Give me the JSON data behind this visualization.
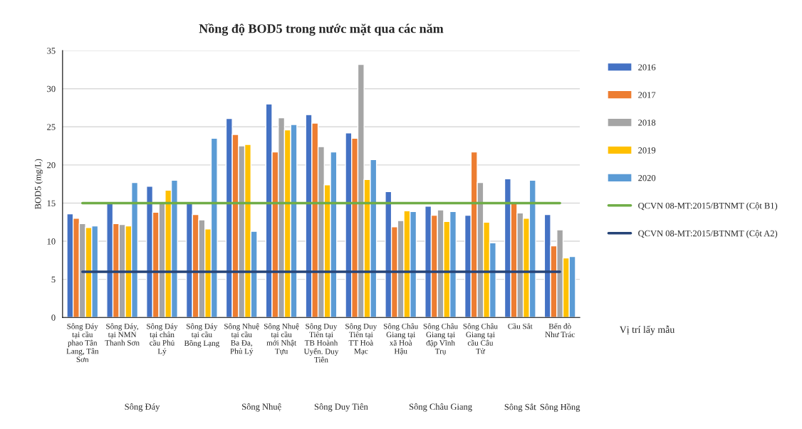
{
  "chart_data": {
    "type": "bar",
    "title": "Nồng độ BOD5 trong nước mặt qua các năm",
    "ylabel": "BOD5 (mg/L)",
    "xlabel": "Vị trí lấy mẫu",
    "categories": [
      "Sông Đáy tại cầu phao Tân Lang, Tân Sơn",
      "Sông Đáy, tại NMN Thanh Sơn",
      "Sông Đáy tại chân cầu Phủ Lý",
      "Sông Đáy tại cầu Bồng Lạng",
      "Sông Nhuệ tại cầu Ba Đa,  Phủ Lý",
      "Sông Nhuệ tại cầu mới Nhật Tựu",
      "Sông Duy Tiên tại TB Hoành Uyển. Duy Tiên",
      "Sông Duy Tiên tại TT Hoà Mạc",
      "Sông Châu Giang tại xã Hoà Hậu",
      "Sông Châu Giang tại đập Vĩnh Trụ",
      "Sông Châu Giang tại cầu Câu Tử",
      "Cầu Sắt",
      "Bến đò Như Trác"
    ],
    "series": [
      {
        "name": "2016",
        "color": "#4472c4",
        "values": [
          13.6,
          15.0,
          17.2,
          15.0,
          26.1,
          28.0,
          26.6,
          24.2,
          16.5,
          14.6,
          13.4,
          18.2,
          13.5
        ]
      },
      {
        "name": "2017",
        "color": "#ed7d31",
        "values": [
          13.0,
          12.3,
          13.8,
          13.5,
          24.0,
          21.7,
          25.5,
          23.5,
          11.9,
          13.4,
          21.7,
          15.0,
          9.4
        ]
      },
      {
        "name": "2018",
        "color": "#a5a5a5",
        "values": [
          12.3,
          12.2,
          15.0,
          12.8,
          22.5,
          26.2,
          22.4,
          33.2,
          12.7,
          14.1,
          17.7,
          13.7,
          11.5
        ]
      },
      {
        "name": "2019",
        "color": "#ffc000",
        "values": [
          11.8,
          12.0,
          16.7,
          11.6,
          22.7,
          24.6,
          17.4,
          18.1,
          14.0,
          12.6,
          12.5,
          13.0,
          7.8
        ]
      },
      {
        "name": "2020",
        "color": "#5b9bd5",
        "values": [
          12.0,
          17.7,
          18.0,
          23.5,
          11.3,
          25.3,
          21.7,
          20.7,
          13.9,
          13.9,
          9.8,
          18.0,
          8.0
        ]
      },
      {
        "name": "QCVN 08-MT:2015/BTNMT (Cột B1)",
        "type": "line",
        "color": "#70ad47",
        "values": [
          15,
          15,
          15,
          15,
          15,
          15,
          15,
          15,
          15,
          15,
          15,
          15,
          15
        ]
      },
      {
        "name": "QCVN 08-MT:2015/BTNMT (Cột A2)",
        "type": "line",
        "color": "#264478",
        "values": [
          6,
          6,
          6,
          6,
          6,
          6,
          6,
          6,
          6,
          6,
          6,
          6,
          6
        ]
      }
    ],
    "annotations": [
      "Sông Đáy",
      "Sông Nhuệ",
      "Sông Duy Tiên",
      "Sông Châu Giang",
      "Sông Sắt",
      "Sông Hồng"
    ],
    "ylim": [
      0,
      35
    ],
    "yticks": [
      0,
      5,
      10,
      15,
      20,
      25,
      30,
      35
    ],
    "grid": "y",
    "legend": "right",
    "marker": "none"
  }
}
